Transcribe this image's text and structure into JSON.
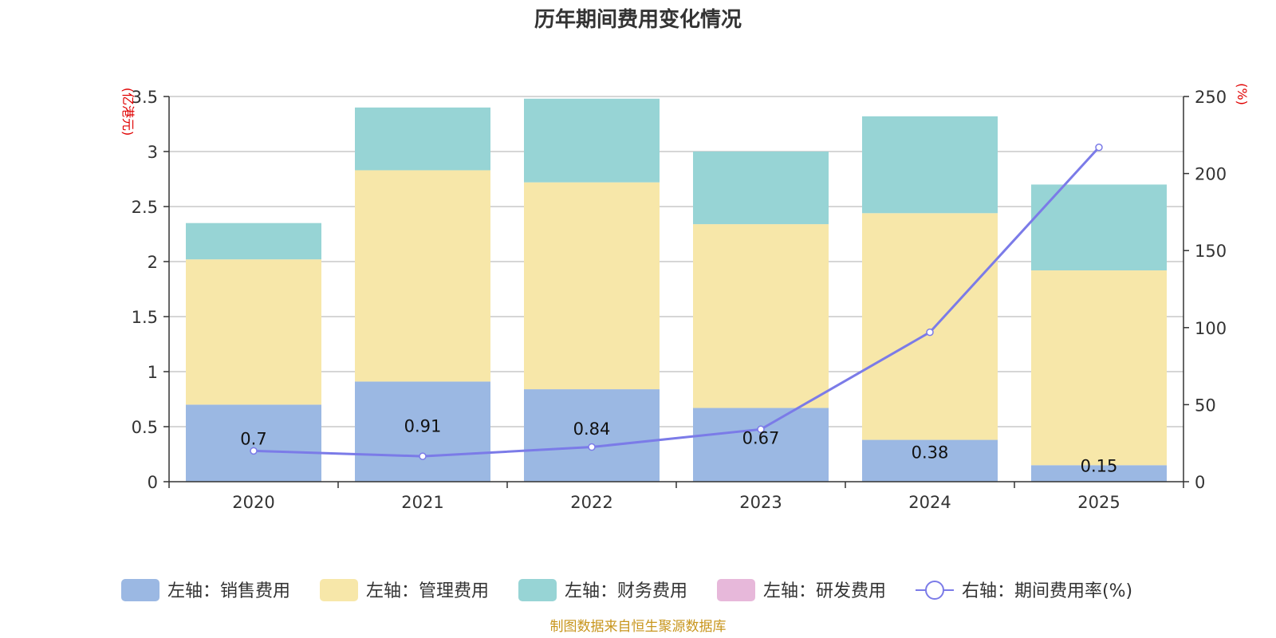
{
  "chart_data": {
    "type": "bar",
    "title": "历年期间费用变化情况",
    "categories": [
      "2020",
      "2021",
      "2022",
      "2023",
      "2024",
      "2025"
    ],
    "left_axis": {
      "unit": "(亿港元)",
      "ylim": [
        0,
        3.5
      ],
      "ticks": [
        "0",
        "0.5",
        "1",
        "1.5",
        "2",
        "2.5",
        "3",
        "3.5"
      ]
    },
    "right_axis": {
      "unit": "(%)",
      "ylim": [
        0,
        250
      ],
      "ticks": [
        "0",
        "50",
        "100",
        "150",
        "200",
        "250"
      ]
    },
    "series": [
      {
        "name": "左轴：销售费用",
        "type": "bar",
        "axis": "left",
        "color": "#9bb8e3",
        "values": [
          0.7,
          0.91,
          0.84,
          0.67,
          0.38,
          0.15
        ],
        "labels": [
          "0.7",
          "0.91",
          "0.84",
          "0.67",
          "0.38",
          "0.15"
        ]
      },
      {
        "name": "左轴：管理费用",
        "type": "bar",
        "axis": "left",
        "color": "#f7e7a9",
        "values": [
          1.32,
          1.92,
          1.88,
          1.67,
          2.06,
          1.77
        ]
      },
      {
        "name": "左轴：财务费用",
        "type": "bar",
        "axis": "left",
        "color": "#97d4d5",
        "values": [
          0.33,
          0.57,
          0.76,
          0.66,
          0.88,
          0.78
        ]
      },
      {
        "name": "左轴：研发费用",
        "type": "bar",
        "axis": "left",
        "color": "#e7b8da",
        "values": [
          0,
          0,
          0,
          0,
          0,
          0
        ]
      },
      {
        "name": "右轴：期间费用率(%)",
        "type": "line",
        "axis": "right",
        "color": "#7b7be8",
        "values": [
          20,
          16.5,
          22.5,
          34,
          97,
          217
        ]
      }
    ],
    "source": "制图数据来自恒生聚源数据库"
  }
}
